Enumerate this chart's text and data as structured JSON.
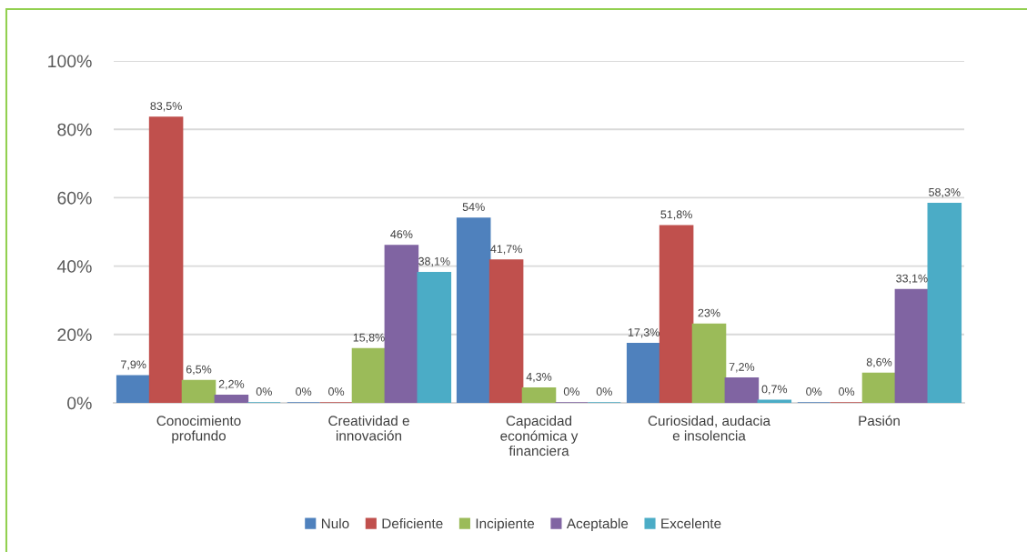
{
  "chart_data": {
    "type": "bar",
    "categories": [
      "Conocimiento profundo",
      "Creatividad e innovación",
      "Capacidad económica y financiera",
      "Curiosidad, audacia e insolencia",
      "Pasión"
    ],
    "series": [
      {
        "name": "Nulo",
        "color": "#4f81bd",
        "values": [
          7.9,
          0,
          54,
          17.3,
          0
        ],
        "value_labels": [
          "7,9%",
          "0%",
          "54%",
          "17,3%",
          "0%"
        ]
      },
      {
        "name": "Deficiente",
        "color": "#c0504d",
        "values": [
          83.5,
          0,
          41.7,
          51.8,
          0
        ],
        "value_labels": [
          "83,5%",
          "0%",
          "41,7%",
          "51,8%",
          "0%"
        ]
      },
      {
        "name": "Incipiente",
        "color": "#9bbb59",
        "values": [
          6.5,
          15.8,
          4.3,
          23,
          8.6
        ],
        "value_labels": [
          "6,5%",
          "15,8%",
          "4,3%",
          "23%",
          "8,6%"
        ]
      },
      {
        "name": "Aceptable",
        "color": "#8064a2",
        "values": [
          2.2,
          46,
          0,
          7.2,
          33.1
        ],
        "value_labels": [
          "2,2%",
          "46%",
          "0%",
          "7,2%",
          "33,1%"
        ]
      },
      {
        "name": "Excelente",
        "color": "#4bacc6",
        "values": [
          0,
          38.1,
          0,
          0.7,
          58.3
        ],
        "value_labels": [
          "0%",
          "38,1%",
          "0%",
          "0,7%",
          "58,3%"
        ]
      }
    ],
    "ylim": [
      0,
      100
    ],
    "yticks": [
      {
        "value": 0,
        "label": "0%"
      },
      {
        "value": 20,
        "label": "20%"
      },
      {
        "value": 40,
        "label": "40%"
      },
      {
        "value": 60,
        "label": "60%"
      },
      {
        "value": 80,
        "label": "80%"
      },
      {
        "value": 100,
        "label": "100%"
      }
    ],
    "grid": "y",
    "legend": "bottom"
  }
}
